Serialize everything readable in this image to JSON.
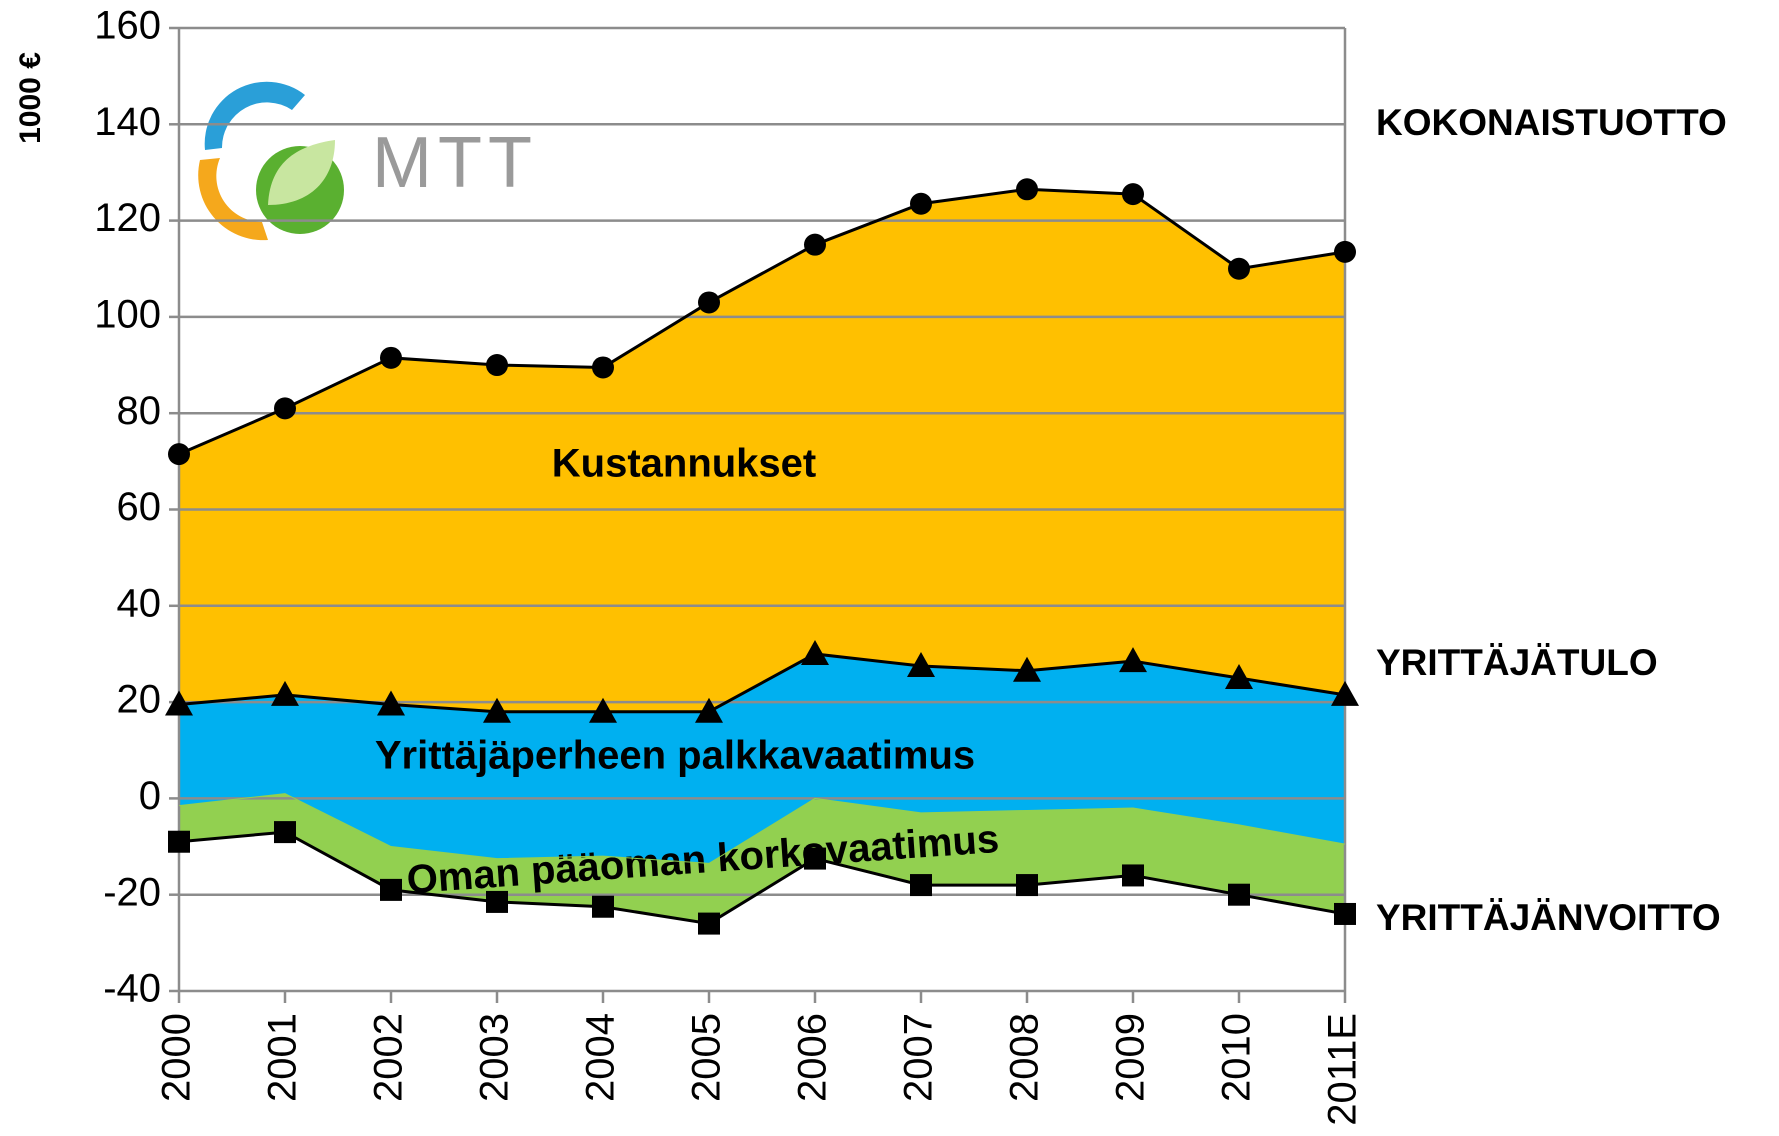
{
  "chart_data": {
    "type": "area",
    "y_label": "1000 €",
    "logo_text": "MTT",
    "categories": [
      "2000",
      "2001",
      "2002",
      "2003",
      "2004",
      "2005",
      "2006",
      "2007",
      "2008",
      "2009",
      "2010",
      "2011E"
    ],
    "ylim": [
      -40,
      160
    ],
    "yticks": [
      -40,
      -20,
      0,
      20,
      40,
      60,
      80,
      100,
      120,
      140,
      160
    ],
    "grid": true,
    "series": [
      {
        "name": "KOKONAISTUOTTO",
        "color": "#000000",
        "marker": "circle",
        "fill": "#ffc000",
        "area_label": "Kustannukset",
        "values": [
          71.5,
          81,
          91.5,
          90,
          89.5,
          103,
          115,
          123.5,
          126.5,
          125.5,
          110,
          113.5
        ]
      },
      {
        "name": "YRITTÄJÄTULO",
        "color": "#000000",
        "marker": "triangle",
        "fill": "#00b0f0",
        "area_label": "Yrittäjäperheen palkkavaatimus",
        "values": [
          19.5,
          21.5,
          19.5,
          18,
          18,
          18,
          30,
          27.5,
          26.5,
          28.5,
          25,
          21.5
        ]
      },
      {
        "name": null,
        "color": "#92d050",
        "marker": null,
        "fill": "#92d050",
        "area_label": "Oman pääoman korkovaatimus",
        "values": [
          -1.5,
          1,
          -10,
          -12.5,
          -12,
          -13.5,
          0,
          -3,
          -2.5,
          -2,
          -5.5,
          -9.5
        ]
      },
      {
        "name": "YRITTÄJÄNVOITTO",
        "color": "#000000",
        "marker": "square",
        "fill": null,
        "area_label": null,
        "values": [
          -9,
          -7,
          -19,
          -21.5,
          -22.5,
          -26,
          -12.5,
          -18,
          -18,
          -16,
          -20,
          -24
        ]
      }
    ]
  }
}
